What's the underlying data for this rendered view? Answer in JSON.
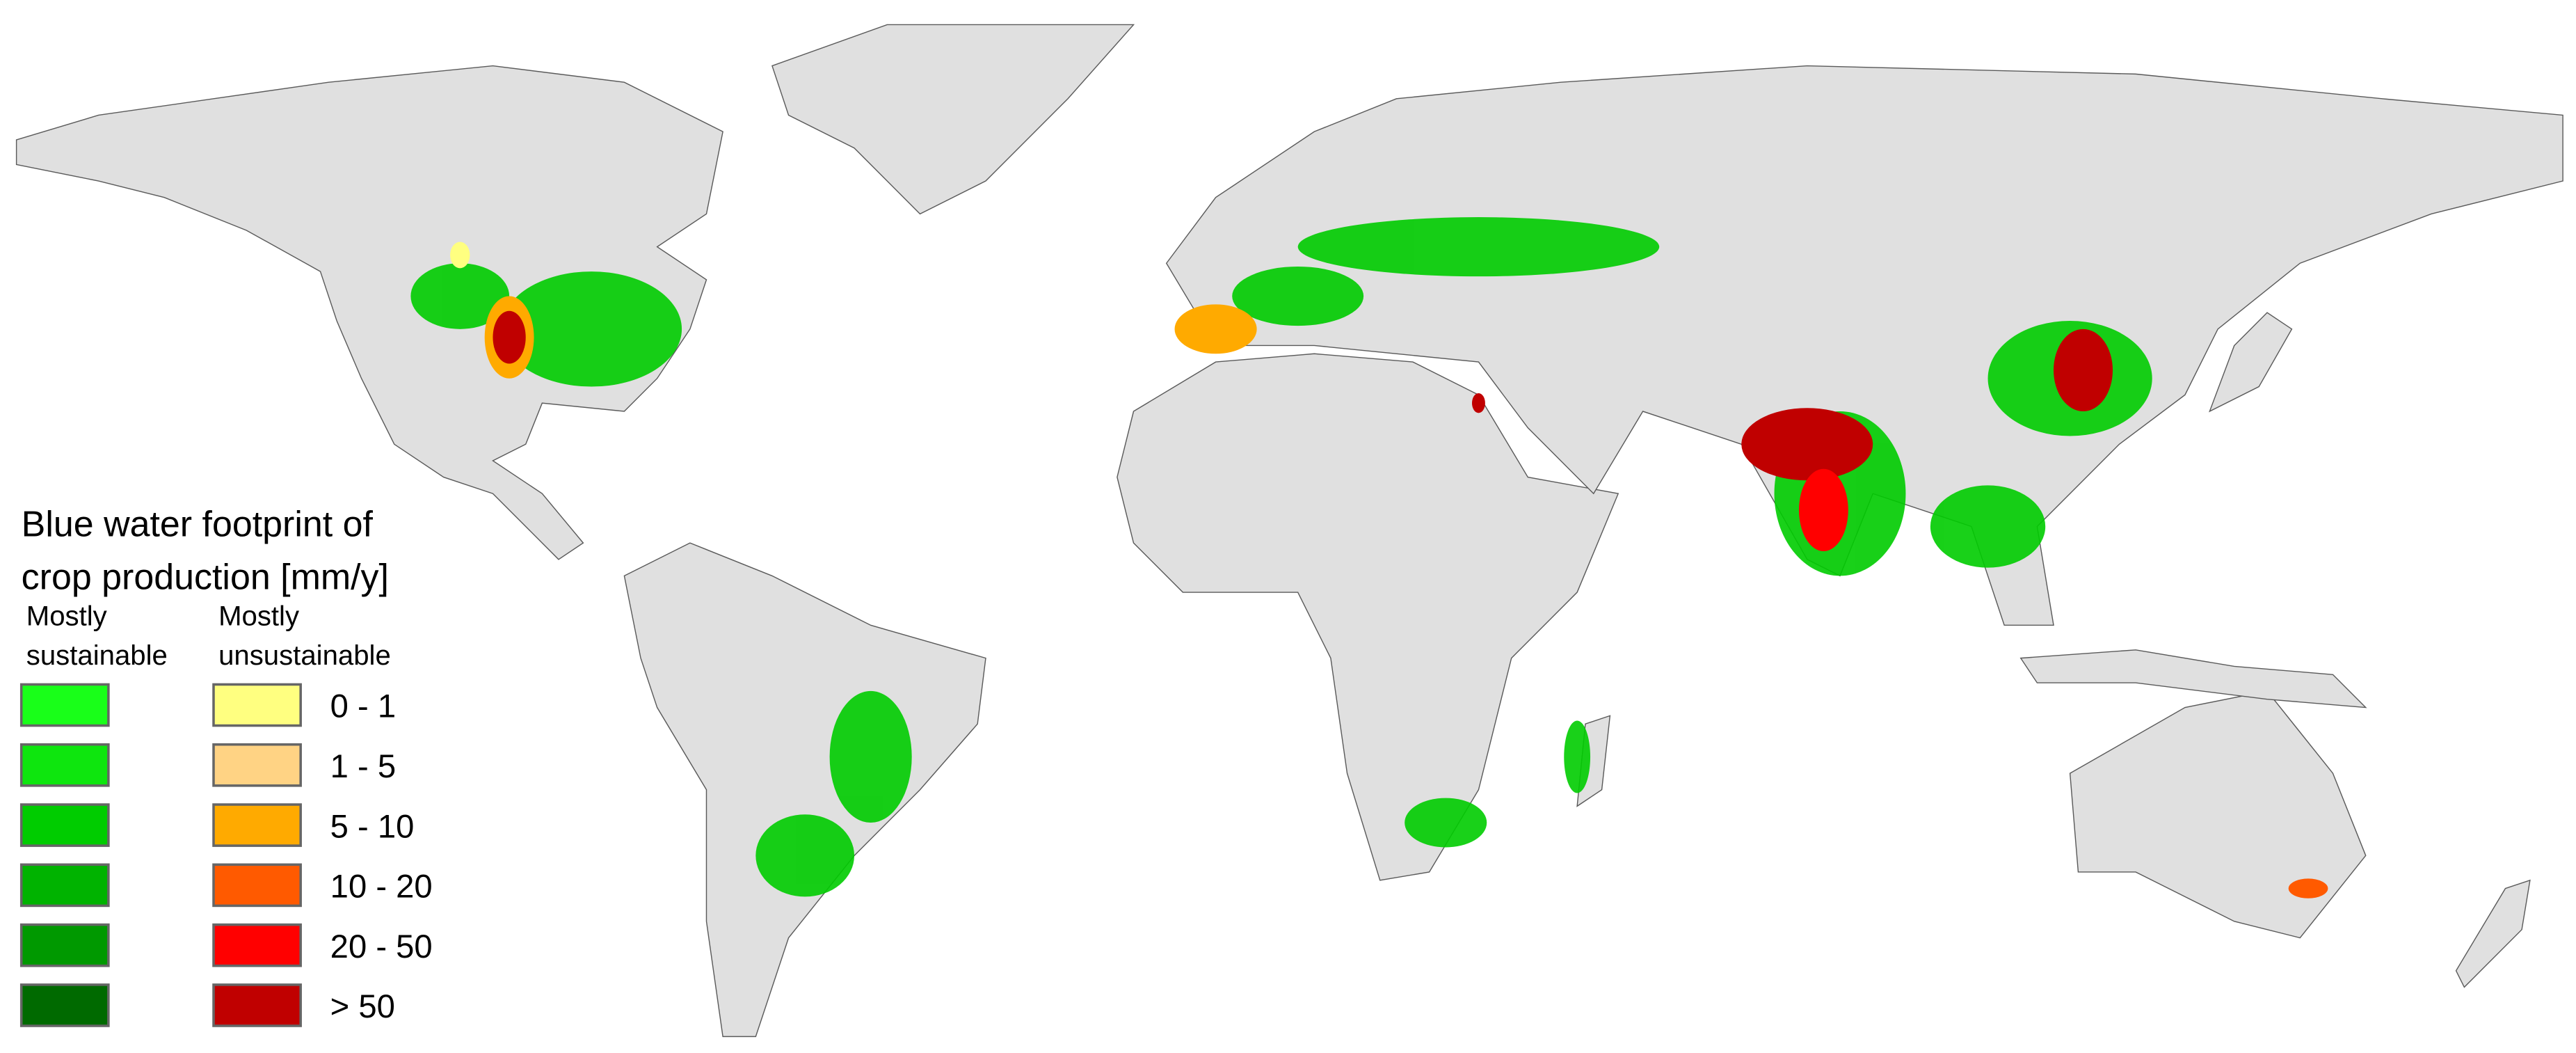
{
  "legend": {
    "title_lines": [
      "Blue water footprint of",
      "crop production [mm/y]"
    ],
    "columns": [
      {
        "heading_lines": [
          "Mostly",
          "sustainable"
        ],
        "colors": [
          "#19ff19",
          "#0ee60e",
          "#00cc00",
          "#00b300",
          "#009900",
          "#006a00"
        ]
      },
      {
        "heading_lines": [
          "Mostly",
          "unsustainable"
        ],
        "colors": [
          "#ffff80",
          "#ffd384",
          "#ffaa00",
          "#ff5a00",
          "#ff0000",
          "#c00000"
        ]
      }
    ],
    "class_labels": [
      "0 - 1",
      "1 - 5",
      "5 - 10",
      "10 - 20",
      "20 - 50",
      "> 50"
    ]
  }
}
